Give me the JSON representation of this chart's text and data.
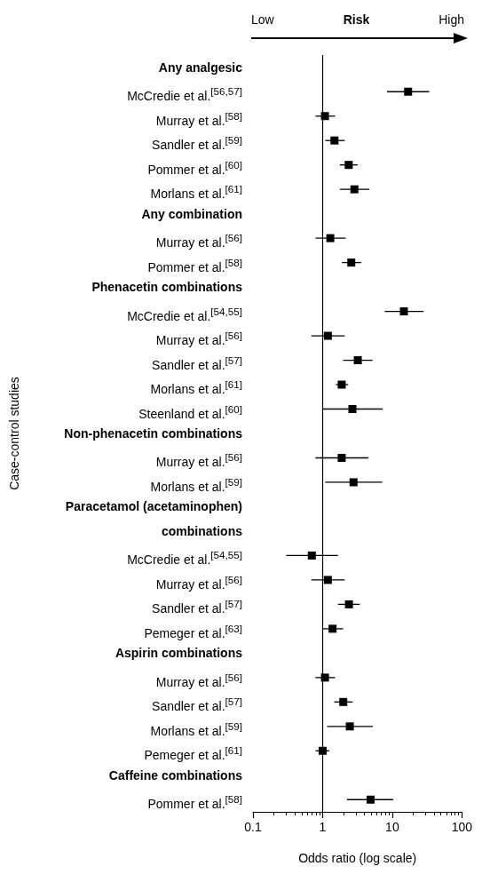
{
  "chart_data": {
    "type": "scatter",
    "orientation": "horizontal",
    "xlabel": "Odds ratio (log scale)",
    "ylabel": "Case-control studies",
    "annotations": [
      "Low",
      "Risk",
      "High"
    ],
    "categories": [
      "Any analgesic",
      "McCredie et al.$^{[56,57]}$",
      "Murray et al.$^{[58]}$",
      "Sandler et al.$^{[59]}$",
      "Pommer et al.$^{[60]}$",
      "Morlans et al.$^{[61]}$",
      "Any combination",
      "Murray et al.$^{[56]}$",
      "Pommer et al.$^{[58]}$",
      "Phenacetin combinations",
      "McCredie et al.$^{[54,55]}$",
      "Murray et al.$^{[56]}$",
      "Sandler et al.$^{[57]}$",
      "Morlans et al.$^{[61]}$",
      "Steenland et al.$^{[60]}$",
      "Non-phenacetin combinations",
      "Murray et al.$^{[56]}$",
      "Morlans et al.$^{[59]}$",
      "Paracetamol (acetaminophen)",
      "combinations",
      "McCredie et al.$^{[54,55]}$",
      "Murray et al.$^{[56]}$",
      "Sandler et al.$^{[57]}$",
      "Pemeger et al.$^{[63]}$",
      "Aspirin combinations",
      "Murray et al.$^{[56]}$",
      "Sandler et al.$^{[57]}$",
      "Morlans et al.$^{[59]}$",
      "Pemeger et al.$^{[61]}$",
      "Caffeine combinations",
      "Pommer et al.$^{[58]}$"
    ],
    "values": [
      null,
      16.9,
      1.08,
      1.48,
      2.37,
      2.86,
      null,
      1.29,
      2.58,
      null,
      14.7,
      1.19,
      3.2,
      1.88,
      2.68,
      null,
      1.88,
      2.78,
      null,
      null,
      0.7,
      1.19,
      2.39,
      1.39,
      null,
      1.08,
      1.98,
      2.46,
      1.0,
      null,
      4.89
    ],
    "errors": [
      null,
      [
        8.4,
        34
      ],
      [
        0.79,
        1.51
      ],
      [
        1.09,
        2.08
      ],
      [
        1.77,
        3.2
      ],
      [
        1.77,
        4.71
      ],
      null,
      [
        0.79,
        2.14
      ],
      [
        1.89,
        3.58
      ],
      null,
      [
        7.8,
        28
      ],
      [
        0.69,
        2.08
      ],
      [
        1.97,
        5.2
      ],
      [
        1.55,
        2.33
      ],
      [
        1.0,
        7.3
      ],
      null,
      [
        0.79,
        4.54
      ],
      [
        1.09,
        7.2
      ],
      null,
      null,
      [
        0.3,
        1.66
      ],
      [
        0.69,
        2.08
      ],
      [
        1.66,
        3.42
      ],
      [
        1.0,
        1.97
      ],
      null,
      [
        0.79,
        1.51
      ],
      [
        1.47,
        2.7
      ],
      [
        1.16,
        5.27
      ],
      [
        0.79,
        1.25
      ],
      null,
      [
        2.24,
        10.3
      ]
    ],
    "color": "#000000",
    "marker": "square",
    "log": "x",
    "grid": false,
    "xlim": [
      0.1,
      100
    ],
    "xticks": [
      0.1,
      {
        "value": 0.2,
        "label": null
      },
      {
        "value": 0.3,
        "label": null
      },
      {
        "value": 0.4,
        "label": null
      },
      {
        "value": 0.5,
        "label": null
      },
      {
        "value": 0.6,
        "label": null
      },
      {
        "value": 0.7,
        "label": null
      },
      {
        "value": 0.8,
        "label": null
      },
      {
        "value": 0.9,
        "label": null
      },
      1,
      {
        "value": 2,
        "label": null
      },
      {
        "value": 3,
        "label": null
      },
      {
        "value": 4,
        "label": null
      },
      {
        "value": 5,
        "label": null
      },
      {
        "value": 6,
        "label": null
      },
      {
        "value": 7,
        "label": null
      },
      {
        "value": 8,
        "label": null
      },
      {
        "value": 9,
        "label": null
      },
      10,
      {
        "value": 20,
        "label": null
      },
      {
        "value": 30,
        "label": null
      },
      {
        "value": 40,
        "label": null
      },
      {
        "value": 50,
        "label": null
      },
      {
        "value": 60,
        "label": null
      },
      {
        "value": 70,
        "label": null
      },
      {
        "value": 80,
        "label": null
      },
      {
        "value": 90,
        "label": null
      },
      100
    ],
    "ref_lines": [
      {
        "axis": "x",
        "value": 1,
        "color": "#000000"
      }
    ]
  }
}
